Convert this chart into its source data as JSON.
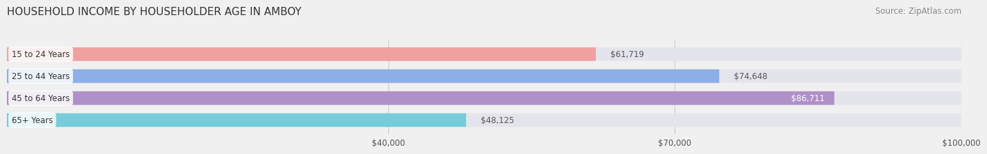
{
  "title": "HOUSEHOLD INCOME BY HOUSEHOLDER AGE IN AMBOY",
  "source": "Source: ZipAtlas.com",
  "categories": [
    "15 to 24 Years",
    "25 to 44 Years",
    "45 to 64 Years",
    "65+ Years"
  ],
  "values": [
    61719,
    74648,
    86711,
    48125
  ],
  "bar_colors": [
    "#f0a0a0",
    "#8eaee8",
    "#b090c8",
    "#76ccd8"
  ],
  "label_colors": [
    "#555555",
    "#555555",
    "#ffffff",
    "#555555"
  ],
  "xlim": [
    0,
    100000
  ],
  "xticks": [
    40000,
    70000,
    100000
  ],
  "xtick_labels": [
    "$40,000",
    "$70,000",
    "$100,000"
  ],
  "background_color": "#f0f0f0",
  "bar_background": "#e4e4ec",
  "title_fontsize": 11,
  "source_fontsize": 8.5
}
